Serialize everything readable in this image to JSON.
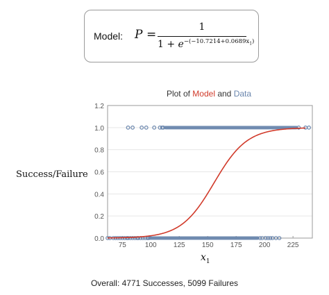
{
  "model_box": {
    "label": "Model:",
    "lhs": "P",
    "equals": "=",
    "numerator": "1",
    "denominator_base": "1 + ",
    "denominator_e": "e",
    "exponent": "−(−10.7214+0.0689x",
    "exponent_sub": "1",
    "exponent_close": ")"
  },
  "chart_title": {
    "prefix": "Plot of ",
    "model_word": "Model",
    "middle": " and ",
    "data_word": "Data"
  },
  "y_axis_label": "Success/Failure",
  "x_axis_label": "x",
  "x_axis_label_sub": "1",
  "footer": "Overall: 4771 Successes, 5099 Failures",
  "colors": {
    "model_curve": "#d13a2a",
    "data_points": "#6a86ad",
    "grid": "#e6e6e6"
  },
  "chart_data": {
    "type": "scatter",
    "xlim": [
      62,
      242
    ],
    "ylim": [
      0,
      1.2
    ],
    "x_ticks": [
      75,
      100,
      125,
      150,
      175,
      200,
      225
    ],
    "y_ticks": [
      0.0,
      0.2,
      0.4,
      0.6,
      0.8,
      1.0,
      1.2
    ],
    "y_tick_labels": [
      "0.0",
      "0.2",
      "0.4",
      "0.6",
      "0.8",
      "1.0",
      "1.2"
    ],
    "grid": "horizontal",
    "model": {
      "intercept": -10.7214,
      "slope": 0.0689,
      "x_range": [
        62,
        236
      ]
    },
    "data_y1": {
      "isolated_x": [
        80,
        84,
        92,
        96,
        103,
        108,
        110,
        111,
        230,
        236,
        239
      ],
      "dense_range": [
        113,
        228
      ]
    },
    "data_y0": {
      "isolated_x": [
        62,
        64,
        67,
        69,
        71,
        73,
        75,
        77,
        79,
        80,
        82,
        84,
        86,
        88,
        89,
        91,
        93,
        95,
        97,
        98,
        196,
        198,
        201,
        203,
        205,
        207,
        210,
        213
      ],
      "dense_range": [
        99,
        194
      ]
    }
  }
}
